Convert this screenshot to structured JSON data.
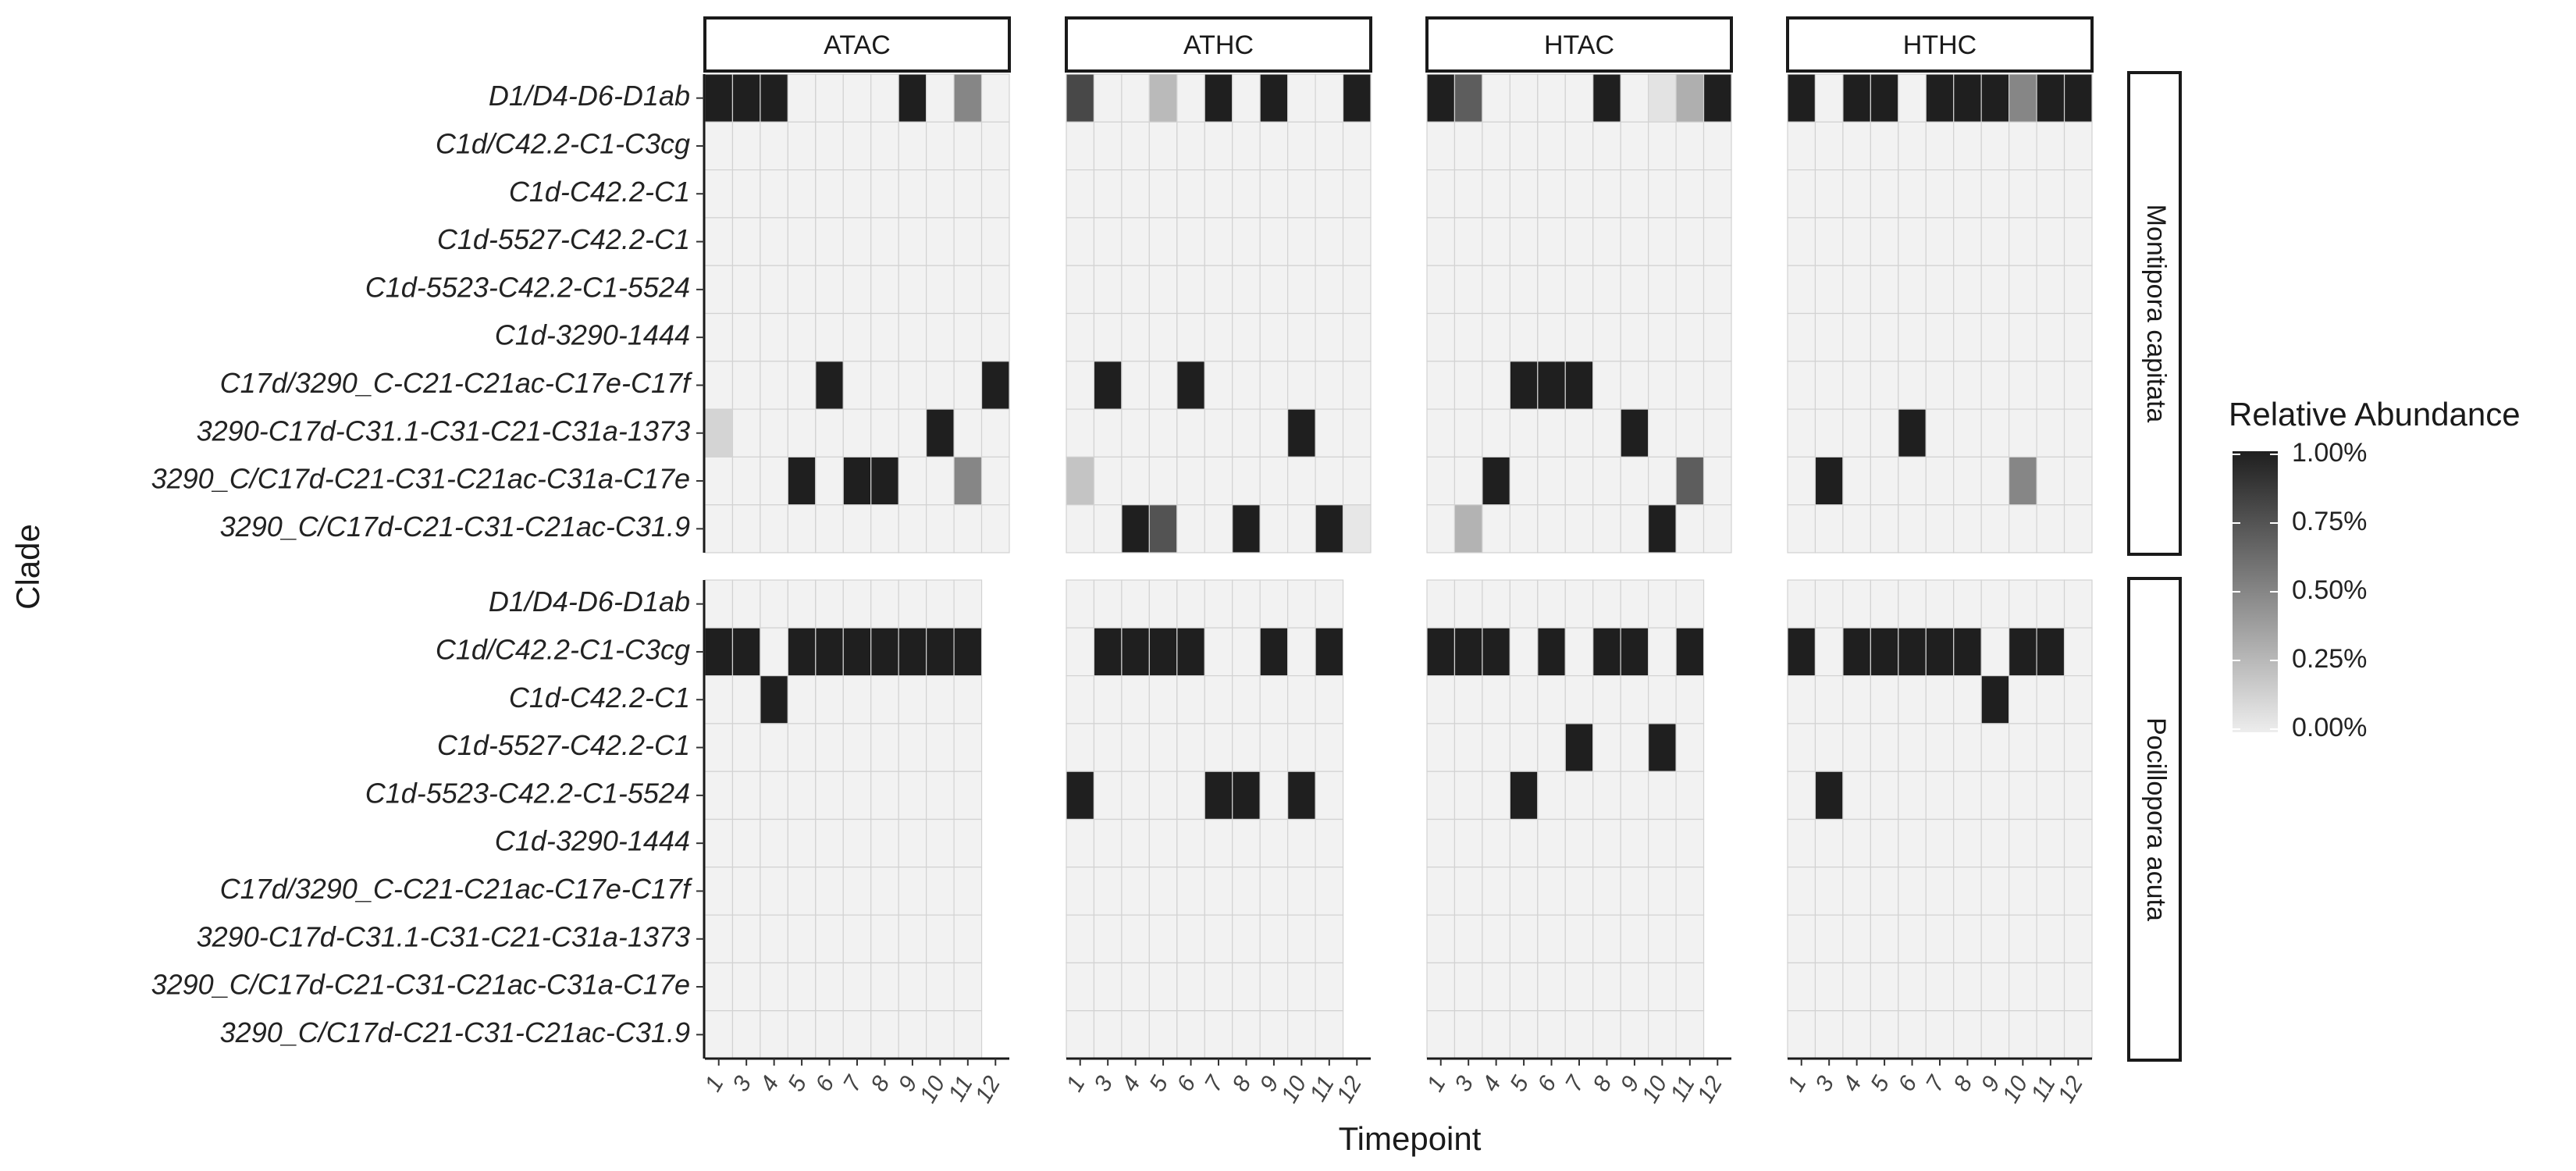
{
  "chart_data": {
    "type": "heatmap",
    "xlabel": "Timepoint",
    "ylabel": "Clade",
    "legend": {
      "title": "Relative Abundance",
      "ticks": [
        "1.00%",
        "0.75%",
        "0.50%",
        "0.25%",
        "0.00%"
      ],
      "range": [
        0,
        1
      ],
      "low_color": "#ededed",
      "high_color": "#1f1f1f",
      "placement": "right"
    },
    "facet_cols": [
      "ATAC",
      "ATHC",
      "HTAC",
      "HTHC"
    ],
    "facet_rows": [
      "Montipora capitata",
      "Pocillopora acuta"
    ],
    "clades": [
      "D1/D4-D6-D1ab",
      "C1d/C42.2-C1-C3cg",
      "C1d-C42.2-C1",
      "C1d-5527-C42.2-C1",
      "C1d-5523-C42.2-C1-5524",
      "C1d-3290-1444",
      "C17d/3290_C-C21-C21ac-C17e-C17f",
      "3290-C17d-C31.1-C31-C21-C31a-1373",
      "3290_C/C17d-C21-C31-C21ac-C31a-C17e",
      "3290_C/C17d-C21-C31-C21ac-C31.9"
    ],
    "timepoints": {
      "ATAC": [
        "1",
        "3",
        "4",
        "5",
        "6",
        "7",
        "8",
        "9",
        "10",
        "11",
        "12"
      ],
      "ATHC": [
        "1",
        "3",
        "4",
        "5",
        "6",
        "7",
        "8",
        "9",
        "10",
        "11",
        "12"
      ],
      "HTAC": [
        "1",
        "3",
        "4",
        "5",
        "6",
        "7",
        "8",
        "9",
        "10",
        "11",
        "12"
      ],
      "HTHC": [
        "1",
        "3",
        "4",
        "5",
        "6",
        "7",
        "8",
        "9",
        "10",
        "11",
        "12"
      ]
    },
    "values": {
      "Montipora capitata": {
        "ATAC": [
          [
            1,
            1,
            1,
            0,
            0,
            0,
            0,
            1,
            0,
            0.5,
            0
          ],
          [
            0,
            0,
            0,
            0,
            0,
            0,
            0,
            0,
            0,
            0,
            0
          ],
          [
            0,
            0,
            0,
            0,
            0,
            0,
            0,
            0,
            0,
            0,
            0
          ],
          [
            0,
            0,
            0,
            0,
            0,
            0,
            0,
            0,
            0,
            0,
            0
          ],
          [
            0,
            0,
            0,
            0,
            0,
            0,
            0,
            0,
            0,
            0,
            0
          ],
          [
            0,
            0,
            0,
            0,
            0,
            0,
            0,
            0,
            0,
            0,
            0
          ],
          [
            0,
            0,
            0,
            0,
            1,
            0,
            0,
            0,
            0,
            0,
            1
          ],
          [
            0.12,
            0,
            0,
            0,
            0,
            0,
            0,
            0,
            1,
            0,
            0
          ],
          [
            0,
            0,
            0,
            1,
            0,
            1,
            1,
            0,
            0,
            0.5,
            0
          ],
          [
            0,
            0,
            0,
            0,
            0,
            0,
            0,
            0,
            0,
            0,
            0
          ]
        ],
        "ATHC": [
          [
            0.8,
            0,
            0,
            0.25,
            0,
            1,
            0,
            1,
            0,
            0,
            1
          ],
          [
            0,
            0,
            0,
            0,
            0,
            0,
            0,
            0,
            0,
            0,
            0
          ],
          [
            0,
            0,
            0,
            0,
            0,
            0,
            0,
            0,
            0,
            0,
            0
          ],
          [
            0,
            0,
            0,
            0,
            0,
            0,
            0,
            0,
            0,
            0,
            0
          ],
          [
            0,
            0,
            0,
            0,
            0,
            0,
            0,
            0,
            0,
            0,
            0
          ],
          [
            0,
            0,
            0,
            0,
            0,
            0,
            0,
            0,
            0,
            0,
            0
          ],
          [
            0,
            1,
            0,
            0,
            1,
            0,
            0,
            0,
            0,
            0,
            0
          ],
          [
            0,
            0,
            0,
            0,
            0,
            0,
            0,
            0,
            1,
            0,
            0
          ],
          [
            0.2,
            0,
            0,
            0,
            0,
            0,
            0,
            0,
            0,
            0,
            0
          ],
          [
            0,
            0,
            1,
            0.75,
            0,
            0,
            1,
            0,
            0,
            1,
            0.03
          ]
        ],
        "HTAC": [
          [
            1,
            0.7,
            0,
            0,
            0,
            0,
            1,
            0,
            0.05,
            0.3,
            1
          ],
          [
            0,
            0,
            0,
            0,
            0,
            0,
            0,
            0,
            0,
            0,
            0
          ],
          [
            0,
            0,
            0,
            0,
            0,
            0,
            0,
            0,
            0,
            0,
            0
          ],
          [
            0,
            0,
            0,
            0,
            0,
            0,
            0,
            0,
            0,
            0,
            0
          ],
          [
            0,
            0,
            0,
            0,
            0,
            0,
            0,
            0,
            0,
            0,
            0
          ],
          [
            0,
            0,
            0,
            0,
            0,
            0,
            0,
            0,
            0,
            0,
            0
          ],
          [
            0,
            0,
            0,
            1,
            1,
            1,
            0,
            0,
            0,
            0,
            0
          ],
          [
            0,
            0,
            0,
            0,
            0,
            0,
            0,
            1,
            0,
            0,
            0
          ],
          [
            0,
            0,
            1,
            0,
            0,
            0,
            0,
            0,
            0,
            0.7,
            0
          ],
          [
            0,
            0.28,
            0,
            0,
            0,
            0,
            0,
            0,
            1,
            0,
            0
          ]
        ],
        "HTHC": [
          [
            1,
            0,
            1,
            1,
            0,
            1,
            1,
            1,
            0.5,
            1,
            1
          ],
          [
            0,
            0,
            0,
            0,
            0,
            0,
            0,
            0,
            0,
            0,
            0
          ],
          [
            0,
            0,
            0,
            0,
            0,
            0,
            0,
            0,
            0,
            0,
            0
          ],
          [
            0,
            0,
            0,
            0,
            0,
            0,
            0,
            0,
            0,
            0,
            0
          ],
          [
            0,
            0,
            0,
            0,
            0,
            0,
            0,
            0,
            0,
            0,
            0
          ],
          [
            0,
            0,
            0,
            0,
            0,
            0,
            0,
            0,
            0,
            0,
            0
          ],
          [
            0,
            0,
            0,
            0,
            0,
            0,
            0,
            0,
            0,
            0,
            0
          ],
          [
            0,
            0,
            0,
            0,
            1,
            0,
            0,
            0,
            0,
            0,
            0
          ],
          [
            0,
            1,
            0,
            0,
            0,
            0,
            0,
            0,
            0.5,
            0,
            0
          ],
          [
            0,
            0,
            0,
            0,
            0,
            0,
            0,
            0,
            0,
            0,
            0
          ]
        ]
      },
      "Pocillopora acuta": {
        "ATAC": [
          [
            0,
            0,
            0,
            0,
            0,
            0,
            0,
            0,
            0,
            0,
            null
          ],
          [
            1,
            1,
            0,
            1,
            1,
            1,
            1,
            1,
            1,
            1,
            null
          ],
          [
            0,
            0,
            1,
            0,
            0,
            0,
            0,
            0,
            0,
            0,
            null
          ],
          [
            0,
            0,
            0,
            0,
            0,
            0,
            0,
            0,
            0,
            0,
            null
          ],
          [
            0,
            0,
            0,
            0,
            0,
            0,
            0,
            0,
            0,
            0,
            null
          ],
          [
            0,
            0,
            0,
            0,
            0,
            0,
            0,
            0,
            0,
            0,
            null
          ],
          [
            0,
            0,
            0,
            0,
            0,
            0,
            0,
            0,
            0,
            0,
            null
          ],
          [
            0,
            0,
            0,
            0,
            0,
            0,
            0,
            0,
            0,
            0,
            null
          ],
          [
            0,
            0,
            0,
            0,
            0,
            0,
            0,
            0,
            0,
            0,
            null
          ],
          [
            0,
            0,
            0,
            0,
            0,
            0,
            0,
            0,
            0,
            0,
            null
          ]
        ],
        "ATHC": [
          [
            0,
            0,
            0,
            0,
            0,
            0,
            0,
            0,
            0,
            0,
            null
          ],
          [
            0,
            1,
            1,
            1,
            1,
            0,
            0,
            1,
            0,
            1,
            null
          ],
          [
            0,
            0,
            0,
            0,
            0,
            0,
            0,
            0,
            0,
            0,
            null
          ],
          [
            0,
            0,
            0,
            0,
            0,
            0,
            0,
            0,
            0,
            0,
            null
          ],
          [
            1,
            0,
            0,
            0,
            0,
            1,
            1,
            0,
            1,
            0,
            null
          ],
          [
            0,
            0,
            0,
            0,
            0,
            0,
            0,
            0,
            0,
            0,
            null
          ],
          [
            0,
            0,
            0,
            0,
            0,
            0,
            0,
            0,
            0,
            0,
            null
          ],
          [
            0,
            0,
            0,
            0,
            0,
            0,
            0,
            0,
            0,
            0,
            null
          ],
          [
            0,
            0,
            0,
            0,
            0,
            0,
            0,
            0,
            0,
            0,
            null
          ],
          [
            0,
            0,
            0,
            0,
            0,
            0,
            0,
            0,
            0,
            0,
            null
          ]
        ],
        "HTAC": [
          [
            0,
            0,
            0,
            0,
            0,
            0,
            0,
            0,
            0,
            0,
            null
          ],
          [
            1,
            1,
            1,
            0,
            1,
            0,
            1,
            1,
            0,
            1,
            null
          ],
          [
            0,
            0,
            0,
            0,
            0,
            0,
            0,
            0,
            0,
            0,
            null
          ],
          [
            0,
            0,
            0,
            0,
            0,
            1,
            0,
            0,
            1,
            0,
            null
          ],
          [
            0,
            0,
            0,
            1,
            0,
            0,
            0,
            0,
            0,
            0,
            null
          ],
          [
            0,
            0,
            0,
            0,
            0,
            0,
            0,
            0,
            0,
            0,
            null
          ],
          [
            0,
            0,
            0,
            0,
            0,
            0,
            0,
            0,
            0,
            0,
            null
          ],
          [
            0,
            0,
            0,
            0,
            0,
            0,
            0,
            0,
            0,
            0,
            null
          ],
          [
            0,
            0,
            0,
            0,
            0,
            0,
            0,
            0,
            0,
            0,
            null
          ],
          [
            0,
            0,
            0,
            0,
            0,
            0,
            0,
            0,
            0,
            0,
            null
          ]
        ],
        "HTHC": [
          [
            0,
            0,
            0,
            0,
            0,
            0,
            0,
            0,
            0,
            0,
            0
          ],
          [
            1,
            0,
            1,
            1,
            1,
            1,
            1,
            0,
            1,
            1,
            0
          ],
          [
            0,
            0,
            0,
            0,
            0,
            0,
            0,
            1,
            0,
            0,
            0
          ],
          [
            0,
            0,
            0,
            0,
            0,
            0,
            0,
            0,
            0,
            0,
            0
          ],
          [
            0,
            1,
            0,
            0,
            0,
            0,
            0,
            0,
            0,
            0,
            0
          ],
          [
            0,
            0,
            0,
            0,
            0,
            0,
            0,
            0,
            0,
            0,
            0
          ],
          [
            0,
            0,
            0,
            0,
            0,
            0,
            0,
            0,
            0,
            0,
            0
          ],
          [
            0,
            0,
            0,
            0,
            0,
            0,
            0,
            0,
            0,
            0,
            0
          ],
          [
            0,
            0,
            0,
            0,
            0,
            0,
            0,
            0,
            0,
            0,
            0
          ],
          [
            0,
            0,
            0,
            0,
            0,
            0,
            0,
            0,
            0,
            0,
            0
          ]
        ]
      }
    }
  }
}
